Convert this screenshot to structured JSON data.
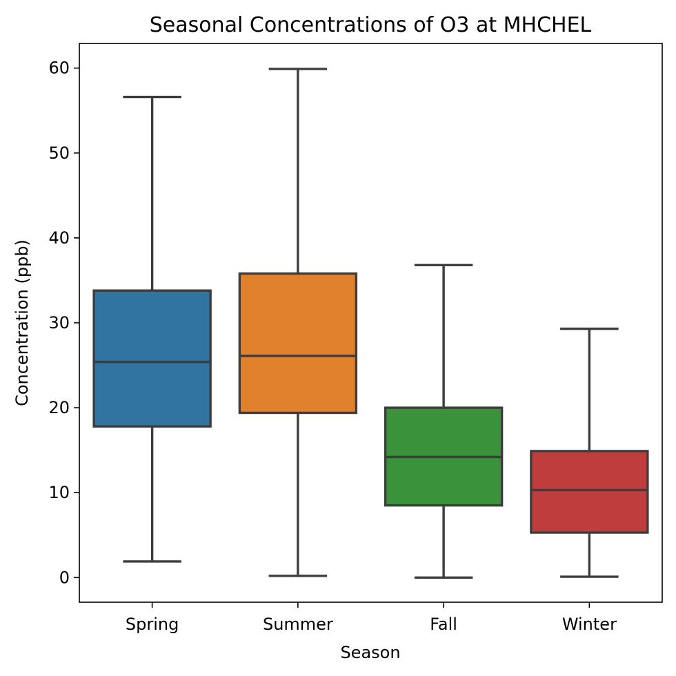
{
  "chart_data": {
    "type": "box",
    "title": "Seasonal Concentrations of O3 at MHCHEL",
    "xlabel": "Season",
    "ylabel": "Concentration (ppb)",
    "ylim": [
      -2.9,
      62.9
    ],
    "yticks": [
      0,
      10,
      20,
      30,
      40,
      50,
      60
    ],
    "grid": false,
    "categories": [
      "Spring",
      "Summer",
      "Fall",
      "Winter"
    ],
    "colors": [
      "#3274a1",
      "#e1812c",
      "#3a923a",
      "#c03d3e"
    ],
    "edge_color": "#3d3d3d",
    "boxes": [
      {
        "category": "Spring",
        "min": 1.9,
        "q1": 17.8,
        "median": 25.4,
        "q3": 33.8,
        "max": 56.6
      },
      {
        "category": "Summer",
        "min": 0.2,
        "q1": 19.4,
        "median": 26.1,
        "q3": 35.8,
        "max": 59.9
      },
      {
        "category": "Fall",
        "min": 0.0,
        "q1": 8.5,
        "median": 14.2,
        "q3": 20.0,
        "max": 36.8
      },
      {
        "category": "Winter",
        "min": 0.1,
        "q1": 5.3,
        "median": 10.3,
        "q3": 14.9,
        "max": 29.3
      }
    ]
  }
}
